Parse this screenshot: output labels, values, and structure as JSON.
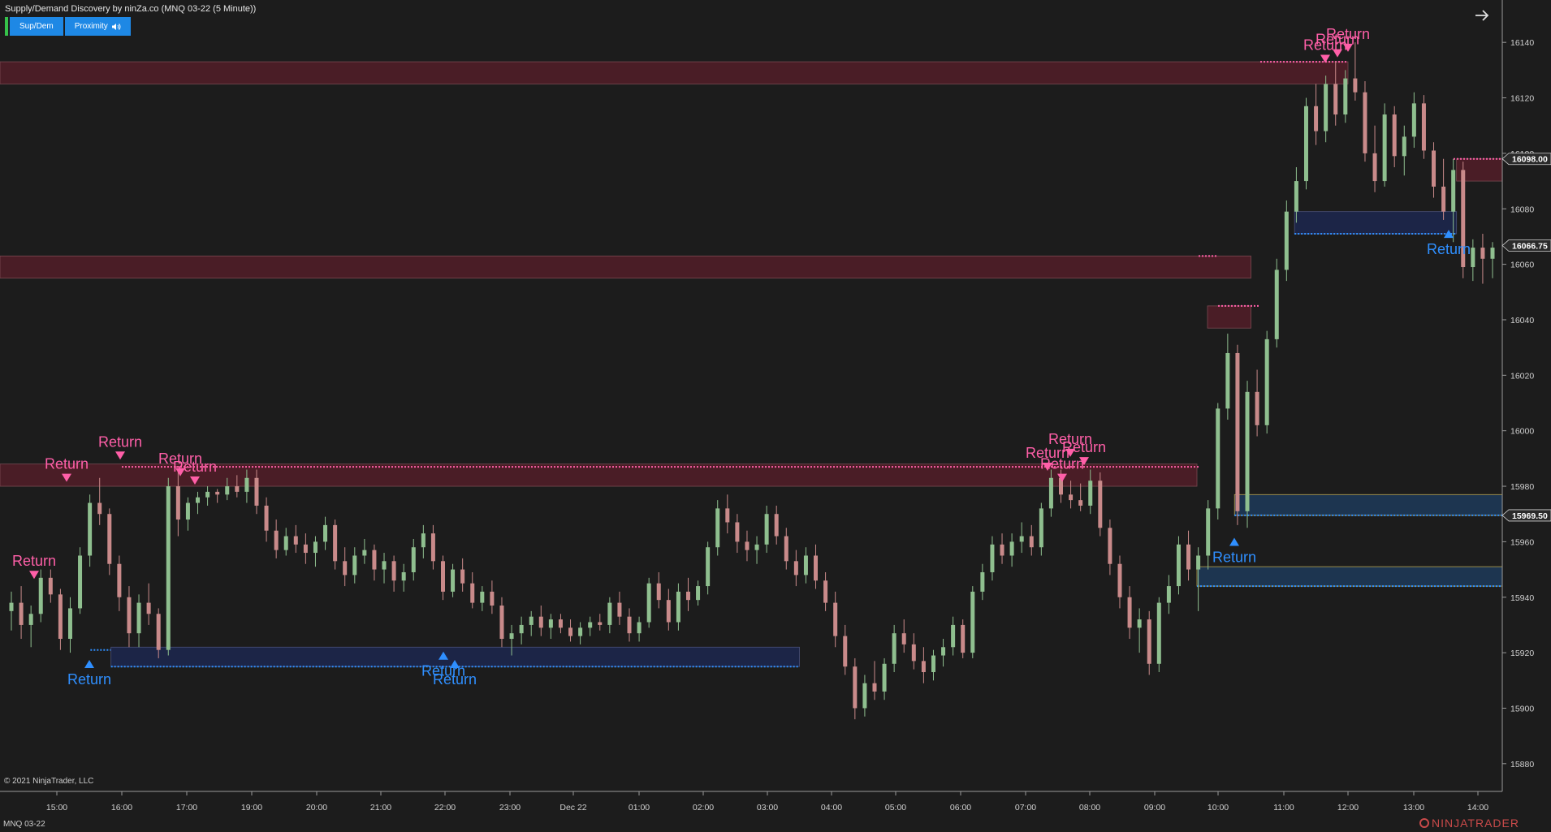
{
  "window": {
    "title": "Supply/Demand Discovery by ninZa.co (MNQ 03-22 (5 Minute))",
    "instrument": "MNQ 03-22",
    "copyright": "© 2021 NinjaTrader, LLC",
    "brand": "NINJATRADER"
  },
  "toolbar": {
    "supdem_label": "Sup/Dem",
    "proximity_label": "Proximity",
    "proximity_icon": "speaker-icon",
    "nav_icon": "arrow-right-icon"
  },
  "colors": {
    "background": "#1c1c1c",
    "up_candle": "#8fbf8f",
    "down_candle": "#c98a8a",
    "supply_zone": "#4a1d26",
    "demand_zone": "#1c2547",
    "return_supply": "#ff5fa8",
    "return_demand": "#2f8fff",
    "accent": "#1e88e5"
  },
  "chart_data": {
    "type": "candlestick",
    "ylim": [
      15870,
      16150
    ],
    "x_ticks": [
      "15:00",
      "16:00",
      "17:00",
      "19:00",
      "20:00",
      "21:00",
      "22:00",
      "23:00",
      "Dec 22",
      "01:00",
      "02:00",
      "03:00",
      "04:00",
      "05:00",
      "06:00",
      "07:00",
      "08:00",
      "09:00",
      "10:00",
      "11:00",
      "12:00",
      "13:00",
      "14:00"
    ],
    "y_ticks": [
      16140,
      16120,
      16100,
      16080,
      16060,
      16040,
      16020,
      16000,
      15980,
      15960,
      15940,
      15920,
      15900,
      15880
    ],
    "price_tags": [
      {
        "label": "16098.00",
        "value": 16098.0
      },
      {
        "label": "16066.75",
        "value": 16066.75
      },
      {
        "label": "15969.50",
        "value": 15969.5
      }
    ],
    "supply_zones": [
      {
        "from": "start",
        "to": "12:00",
        "top": 16133,
        "bottom": 16125
      },
      {
        "from": "start",
        "to": "10:30",
        "top": 16063,
        "bottom": 16055
      },
      {
        "from": "start",
        "to": "09:40",
        "top": 15988,
        "bottom": 15980
      },
      {
        "from": "09:50",
        "to": "10:30",
        "top": 16045,
        "bottom": 16037
      },
      {
        "from": "13:40",
        "to": "end",
        "top": 16098,
        "bottom": 16090
      }
    ],
    "demand_zones": [
      {
        "from": "14:40",
        "to": "15:30",
        "top": 15928,
        "bottom": 15921
      },
      {
        "from": "15:50",
        "to": "03:30",
        "top": 15922,
        "bottom": 15915
      },
      {
        "from": "11:10",
        "to": "13:40",
        "top": 16079,
        "bottom": 16071
      },
      {
        "from": "10:15",
        "to": "end",
        "top": 15977,
        "bottom": 15969.5
      },
      {
        "from": "09:40",
        "to": "end",
        "top": 15951,
        "bottom": 15944
      }
    ],
    "return_labels": [
      "Return",
      "Return",
      "Return",
      "Return",
      "Return",
      "Return",
      "Return",
      "Return",
      "Return",
      "Return",
      "Return",
      "Return",
      "Return",
      "Return",
      "Return",
      "Return",
      "Return"
    ],
    "candles": [
      [
        15935,
        15942,
        15928,
        15938
      ],
      [
        15938,
        15944,
        15925,
        15930
      ],
      [
        15930,
        15937,
        15922,
        15934
      ],
      [
        15934,
        15950,
        15931,
        15947
      ],
      [
        15947,
        15950,
        15938,
        15941
      ],
      [
        15941,
        15943,
        15921,
        15925
      ],
      [
        15925,
        15940,
        15920,
        15936
      ],
      [
        15936,
        15958,
        15934,
        15955
      ],
      [
        15955,
        15977,
        15951,
        15974
      ],
      [
        15974,
        15983,
        15966,
        15970
      ],
      [
        15970,
        15972,
        15948,
        15952
      ],
      [
        15952,
        15955,
        15935,
        15940
      ],
      [
        15940,
        15944,
        15922,
        15927
      ],
      [
        15927,
        15941,
        15922,
        15938
      ],
      [
        15938,
        15945,
        15930,
        15934
      ],
      [
        15934,
        15936,
        15918,
        15921
      ],
      [
        15921,
        15983,
        15919,
        15980
      ],
      [
        15980,
        15986,
        15962,
        15968
      ],
      [
        15968,
        15976,
        15964,
        15974
      ],
      [
        15974,
        15978,
        15970,
        15976
      ],
      [
        15976,
        15980,
        15973,
        15978
      ],
      [
        15978,
        15979,
        15974,
        15977
      ],
      [
        15977,
        15983,
        15975,
        15980
      ],
      [
        15980,
        15984,
        15976,
        15978
      ],
      [
        15978,
        15986,
        15974,
        15983
      ],
      [
        15983,
        15986,
        15970,
        15973
      ],
      [
        15973,
        15976,
        15960,
        15964
      ],
      [
        15964,
        15968,
        15954,
        15957
      ],
      [
        15957,
        15965,
        15955,
        15962
      ],
      [
        15962,
        15966,
        15956,
        15959
      ],
      [
        15959,
        15963,
        15952,
        15956
      ],
      [
        15956,
        15962,
        15951,
        15960
      ],
      [
        15960,
        15969,
        15957,
        15966
      ],
      [
        15966,
        15968,
        15950,
        15953
      ],
      [
        15953,
        15958,
        15944,
        15948
      ],
      [
        15948,
        15958,
        15945,
        15955
      ],
      [
        15955,
        15961,
        15952,
        15957
      ],
      [
        15957,
        15959,
        15946,
        15950
      ],
      [
        15950,
        15956,
        15945,
        15953
      ],
      [
        15953,
        15955,
        15942,
        15946
      ],
      [
        15946,
        15952,
        15942,
        15949
      ],
      [
        15949,
        15961,
        15946,
        15958
      ],
      [
        15958,
        15966,
        15954,
        15963
      ],
      [
        15963,
        15966,
        15950,
        15953
      ],
      [
        15953,
        15955,
        15939,
        15942
      ],
      [
        15942,
        15952,
        15940,
        15950
      ],
      [
        15950,
        15954,
        15942,
        15945
      ],
      [
        15945,
        15949,
        15936,
        15938
      ],
      [
        15938,
        15944,
        15935,
        15942
      ],
      [
        15942,
        15946,
        15934,
        15937
      ],
      [
        15937,
        15940,
        15922,
        15925
      ],
      [
        15925,
        15930,
        15919,
        15927
      ],
      [
        15927,
        15933,
        15923,
        15930
      ],
      [
        15930,
        15935,
        15926,
        15933
      ],
      [
        15933,
        15937,
        15926,
        15929
      ],
      [
        15929,
        15934,
        15925,
        15932
      ],
      [
        15932,
        15934,
        15927,
        15929
      ],
      [
        15929,
        15932,
        15924,
        15926
      ],
      [
        15926,
        15931,
        15923,
        15929
      ],
      [
        15929,
        15933,
        15926,
        15931
      ],
      [
        15931,
        15934,
        15928,
        15930
      ],
      [
        15930,
        15940,
        15927,
        15938
      ],
      [
        15938,
        15942,
        15930,
        15933
      ],
      [
        15933,
        15936,
        15924,
        15927
      ],
      [
        15927,
        15933,
        15924,
        15931
      ],
      [
        15931,
        15947,
        15929,
        15945
      ],
      [
        15945,
        15949,
        15936,
        15939
      ],
      [
        15939,
        15943,
        15928,
        15931
      ],
      [
        15931,
        15945,
        15928,
        15942
      ],
      [
        15942,
        15947,
        15935,
        15939
      ],
      [
        15939,
        15946,
        15937,
        15944
      ],
      [
        15944,
        15960,
        15941,
        15958
      ],
      [
        15958,
        15975,
        15955,
        15972
      ],
      [
        15972,
        15977,
        15963,
        15967
      ],
      [
        15967,
        15970,
        15956,
        15960
      ],
      [
        15960,
        15964,
        15953,
        15957
      ],
      [
        15957,
        15962,
        15952,
        15959
      ],
      [
        15959,
        15973,
        15956,
        15970
      ],
      [
        15970,
        15973,
        15959,
        15962
      ],
      [
        15962,
        15965,
        15950,
        15953
      ],
      [
        15953,
        15957,
        15944,
        15948
      ],
      [
        15948,
        15958,
        15945,
        15955
      ],
      [
        15955,
        15959,
        15943,
        15946
      ],
      [
        15946,
        15949,
        15935,
        15938
      ],
      [
        15938,
        15942,
        15922,
        15926
      ],
      [
        15926,
        15930,
        15912,
        15915
      ],
      [
        15915,
        15918,
        15896,
        15900
      ],
      [
        15900,
        15912,
        15897,
        15909
      ],
      [
        15909,
        15917,
        15903,
        15906
      ],
      [
        15906,
        15918,
        15903,
        15916
      ],
      [
        15916,
        15930,
        15913,
        15927
      ],
      [
        15927,
        15932,
        15920,
        15923
      ],
      [
        15923,
        15927,
        15914,
        15917
      ],
      [
        15917,
        15922,
        15909,
        15913
      ],
      [
        15913,
        15921,
        15910,
        15919
      ],
      [
        15919,
        15925,
        15915,
        15922
      ],
      [
        15922,
        15933,
        15919,
        15930
      ],
      [
        15930,
        15932,
        15918,
        15920
      ],
      [
        15920,
        15944,
        15918,
        15942
      ],
      [
        15942,
        15952,
        15939,
        15949
      ],
      [
        15949,
        15962,
        15946,
        15959
      ],
      [
        15959,
        15963,
        15952,
        15955
      ],
      [
        15955,
        15963,
        15951,
        15960
      ],
      [
        15960,
        15967,
        15956,
        15962
      ],
      [
        15962,
        15966,
        15955,
        15958
      ],
      [
        15958,
        15974,
        15955,
        15972
      ],
      [
        15972,
        15986,
        15969,
        15983
      ],
      [
        15983,
        15986,
        15974,
        15977
      ],
      [
        15977,
        15982,
        15972,
        15975
      ],
      [
        15975,
        15981,
        15971,
        15973
      ],
      [
        15973,
        15986,
        15970,
        15982
      ],
      [
        15982,
        15985,
        15962,
        15965
      ],
      [
        15965,
        15968,
        15948,
        15952
      ],
      [
        15952,
        15955,
        15936,
        15940
      ],
      [
        15940,
        15944,
        15925,
        15929
      ],
      [
        15929,
        15936,
        15920,
        15932
      ],
      [
        15932,
        15935,
        15912,
        15916
      ],
      [
        15916,
        15940,
        15913,
        15938
      ],
      [
        15938,
        15948,
        15934,
        15944
      ],
      [
        15944,
        15962,
        15941,
        15959
      ],
      [
        15959,
        15964,
        15946,
        15950
      ],
      [
        15950,
        15958,
        15935,
        15955
      ],
      [
        15955,
        15975,
        15950,
        15972
      ],
      [
        15972,
        16010,
        15968,
        16008
      ],
      [
        16008,
        16035,
        16004,
        16028
      ],
      [
        16028,
        16031,
        15966,
        15971
      ],
      [
        15971,
        16018,
        15965,
        16014
      ],
      [
        16014,
        16022,
        15998,
        16002
      ],
      [
        16002,
        16036,
        15999,
        16033
      ],
      [
        16033,
        16062,
        16030,
        16058
      ],
      [
        16058,
        16083,
        16054,
        16079
      ],
      [
        16079,
        16095,
        16075,
        16090
      ],
      [
        16090,
        16120,
        16087,
        16117
      ],
      [
        16117,
        16125,
        16103,
        16108
      ],
      [
        16108,
        16128,
        16104,
        16125
      ],
      [
        16125,
        16133,
        16110,
        16114
      ],
      [
        16114,
        16130,
        16111,
        16127
      ],
      [
        16127,
        16140,
        16119,
        16122
      ],
      [
        16122,
        16126,
        16097,
        16100
      ],
      [
        16100,
        16110,
        16086,
        16090
      ],
      [
        16090,
        16118,
        16088,
        16114
      ],
      [
        16114,
        16117,
        16095,
        16099
      ],
      [
        16099,
        16110,
        16092,
        16106
      ],
      [
        16106,
        16122,
        16102,
        16118
      ],
      [
        16118,
        16121,
        16098,
        16101
      ],
      [
        16101,
        16104,
        16084,
        16088
      ],
      [
        16088,
        16098,
        16076,
        16079
      ],
      [
        16079,
        16098,
        16068,
        16094
      ],
      [
        16094,
        16097,
        16055,
        16059
      ],
      [
        16059,
        16069,
        16054,
        16066
      ],
      [
        16066,
        16071,
        16053,
        16062
      ],
      [
        16062,
        16068,
        16055,
        16066
      ]
    ]
  }
}
